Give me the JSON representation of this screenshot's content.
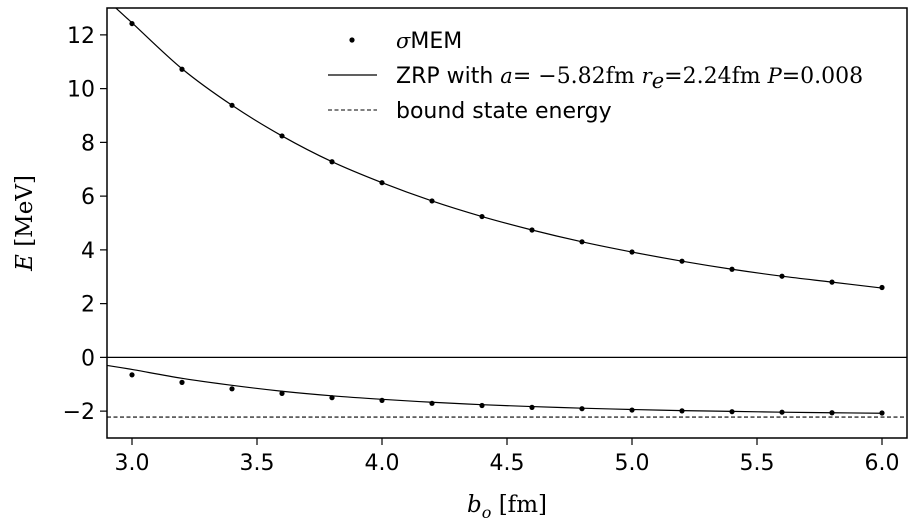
{
  "chart_data": {
    "type": "line",
    "xlabel": {
      "symbol": "b",
      "subscript": "o",
      "unit": " [fm]"
    },
    "ylabel": {
      "symbol": "E",
      "unit": " [MeV]"
    },
    "xlim": [
      2.9,
      6.1
    ],
    "ylim": [
      -3.0,
      13.0
    ],
    "xticks": [
      3.0,
      3.5,
      4.0,
      4.5,
      5.0,
      5.5,
      6.0
    ],
    "xtick_labels": [
      "3.0",
      "3.5",
      "4.0",
      "4.5",
      "5.0",
      "5.5",
      "6.0"
    ],
    "yticks": [
      -2,
      0,
      2,
      4,
      6,
      8,
      10,
      12
    ],
    "ytick_labels": [
      "−2",
      "0",
      "2",
      "4",
      "6",
      "8",
      "10",
      "12"
    ],
    "grid": false,
    "legend": {
      "placement": "top-center",
      "entries": [
        {
          "marker": "dot",
          "prefix_math": "σ",
          "text": "MEM"
        },
        {
          "marker": "solid-line",
          "text": "ZRP with a = −5.82fm r_e = 2.24fm P = 0.008"
        },
        {
          "marker": "dashed-line",
          "text": "bound state energy"
        }
      ]
    },
    "zero_line": 0,
    "bound_state_energy": -2.22,
    "series": [
      {
        "name": "σMEM",
        "style": "points",
        "x": [
          3.0,
          3.2,
          3.4,
          3.6,
          3.8,
          4.0,
          4.2,
          4.4,
          4.6,
          4.8,
          5.0,
          5.2,
          5.4,
          5.6,
          5.8,
          6.0
        ],
        "y_upper": [
          12.42,
          10.72,
          9.38,
          8.24,
          7.28,
          6.5,
          5.82,
          5.24,
          4.74,
          4.3,
          3.92,
          3.58,
          3.28,
          3.02,
          2.8,
          2.6
        ],
        "y_lower": [
          -0.65,
          -0.93,
          -1.17,
          -1.34,
          -1.5,
          -1.6,
          -1.71,
          -1.79,
          -1.86,
          -1.91,
          -1.96,
          -1.99,
          -2.02,
          -2.04,
          -2.06,
          -2.07
        ]
      },
      {
        "name": "ZRP with a = −5.82fm r_e = 2.24fm P = 0.008",
        "style": "solid-line",
        "x": [
          2.9,
          3.0,
          3.2,
          3.4,
          3.6,
          3.8,
          4.0,
          4.2,
          4.4,
          4.6,
          4.8,
          5.0,
          5.2,
          5.4,
          5.6,
          5.8,
          6.0
        ],
        "y_upper": [
          13.3,
          12.45,
          10.74,
          9.38,
          8.24,
          7.28,
          6.5,
          5.82,
          5.24,
          4.74,
          4.3,
          3.92,
          3.58,
          3.28,
          3.02,
          2.8,
          2.58
        ],
        "y_lower": [
          -0.3,
          -0.45,
          -0.78,
          -1.04,
          -1.26,
          -1.43,
          -1.56,
          -1.67,
          -1.76,
          -1.83,
          -1.89,
          -1.94,
          -1.98,
          -2.01,
          -2.04,
          -2.06,
          -2.08
        ]
      }
    ]
  }
}
